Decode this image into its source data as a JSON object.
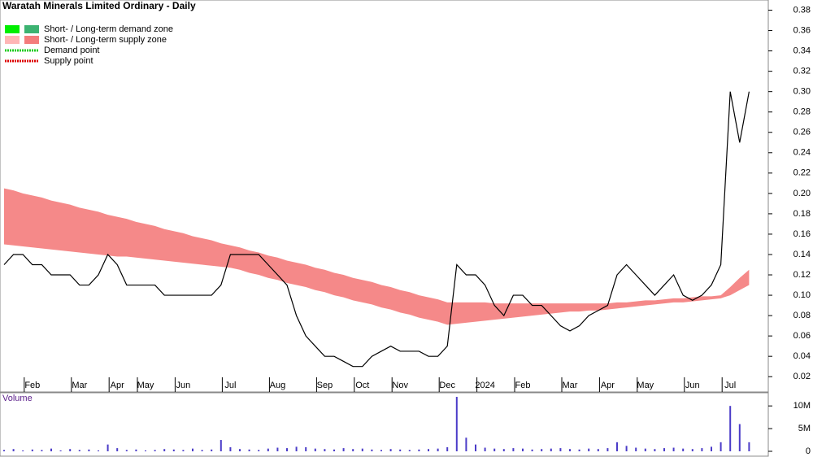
{
  "chart_data": {
    "type": "stock",
    "title": "Waratah Minerals Limited Ordinary - Daily",
    "legend": [
      "Short- / Long-term demand zone",
      "Short- / Long-term supply zone",
      "Demand point",
      "Supply point"
    ],
    "legend_colors": [
      [
        "#00ee00",
        "#3cb371"
      ],
      [
        "#ffb6b6",
        "#f47c7c"
      ],
      [
        "#22cc22"
      ],
      [
        "#dd0000"
      ]
    ],
    "categories": [
      null,
      null,
      null,
      "Feb",
      null,
      null,
      null,
      null,
      "Mar",
      null,
      null,
      null,
      "Apr",
      null,
      null,
      "May",
      null,
      null,
      null,
      "Jun",
      null,
      null,
      null,
      null,
      "Jul",
      null,
      null,
      null,
      null,
      "Aug",
      null,
      null,
      null,
      null,
      "Sep",
      null,
      null,
      null,
      "Oct",
      null,
      null,
      null,
      "Nov",
      null,
      null,
      null,
      null,
      "Dec",
      null,
      null,
      null,
      "2024",
      null,
      null,
      null,
      "Feb",
      null,
      null,
      null,
      null,
      "Mar",
      null,
      null,
      null,
      "Apr",
      null,
      null,
      null,
      "May",
      null,
      null,
      null,
      null,
      "Jun",
      null,
      null,
      null,
      "Jul",
      null,
      null
    ],
    "close": [
      0.13,
      0.14,
      0.14,
      0.13,
      0.13,
      0.12,
      0.12,
      0.12,
      0.11,
      0.11,
      0.12,
      0.14,
      0.13,
      0.11,
      0.11,
      0.11,
      0.11,
      0.1,
      0.1,
      0.1,
      0.1,
      0.1,
      0.1,
      0.11,
      0.14,
      0.14,
      0.14,
      0.14,
      0.13,
      0.12,
      0.11,
      0.08,
      0.06,
      0.05,
      0.04,
      0.04,
      0.035,
      0.03,
      0.03,
      0.04,
      0.045,
      0.05,
      0.045,
      0.045,
      0.045,
      0.04,
      0.04,
      0.05,
      0.13,
      0.12,
      0.12,
      0.11,
      0.09,
      0.08,
      0.1,
      0.1,
      0.09,
      0.09,
      0.08,
      0.07,
      0.065,
      0.07,
      0.08,
      0.085,
      0.09,
      0.12,
      0.13,
      0.12,
      0.11,
      0.1,
      0.11,
      0.12,
      0.1,
      0.095,
      0.1,
      0.11,
      0.13,
      0.3,
      0.25,
      0.3
    ],
    "close_color": "#000000",
    "zone_upper": [
      0.205,
      0.203,
      0.2,
      0.198,
      0.196,
      0.193,
      0.191,
      0.189,
      0.186,
      0.184,
      0.182,
      0.179,
      0.177,
      0.175,
      0.172,
      0.17,
      0.168,
      0.165,
      0.163,
      0.161,
      0.158,
      0.156,
      0.154,
      0.151,
      0.149,
      0.147,
      0.144,
      0.142,
      0.139,
      0.137,
      0.134,
      0.132,
      0.13,
      0.127,
      0.125,
      0.122,
      0.12,
      0.117,
      0.115,
      0.113,
      0.11,
      0.108,
      0.105,
      0.103,
      0.1,
      0.098,
      0.096,
      0.093,
      0.093,
      0.093,
      0.093,
      0.093,
      0.092,
      0.092,
      0.092,
      0.092,
      0.092,
      0.092,
      0.092,
      0.092,
      0.092,
      0.092,
      0.092,
      0.092,
      0.092,
      0.093,
      0.093,
      0.094,
      0.095,
      0.095,
      0.096,
      0.097,
      0.097,
      0.098,
      0.099,
      0.099,
      0.1,
      0.108,
      0.117,
      0.125
    ],
    "zone_lower": [
      0.15,
      0.149,
      0.148,
      0.147,
      0.146,
      0.145,
      0.144,
      0.143,
      0.142,
      0.141,
      0.14,
      0.139,
      0.138,
      0.138,
      0.137,
      0.136,
      0.135,
      0.134,
      0.133,
      0.132,
      0.131,
      0.13,
      0.129,
      0.128,
      0.127,
      0.125,
      0.122,
      0.12,
      0.117,
      0.115,
      0.112,
      0.11,
      0.108,
      0.105,
      0.103,
      0.1,
      0.098,
      0.095,
      0.093,
      0.091,
      0.088,
      0.086,
      0.083,
      0.081,
      0.078,
      0.076,
      0.074,
      0.071,
      0.072,
      0.073,
      0.074,
      0.075,
      0.076,
      0.077,
      0.078,
      0.079,
      0.08,
      0.081,
      0.082,
      0.083,
      0.084,
      0.084,
      0.085,
      0.085,
      0.086,
      0.087,
      0.088,
      0.089,
      0.09,
      0.091,
      0.092,
      0.093,
      0.093,
      0.094,
      0.095,
      0.096,
      0.097,
      0.1,
      0.105,
      0.11
    ],
    "zone_color": "#f47c7c",
    "ylim": [
      0.005,
      0.39
    ],
    "yticks": [
      0.02,
      0.04,
      0.06,
      0.08,
      {
        "value": 0.1,
        "label": "0.10"
      },
      0.12,
      0.14,
      0.16,
      0.18,
      {
        "value": 0.2,
        "label": "0.20"
      },
      0.22,
      0.24,
      0.26,
      0.28,
      {
        "value": 0.3,
        "label": "0.30"
      },
      0.32,
      0.34,
      0.36,
      0.38
    ],
    "volume_label": "Volume",
    "volume": [
      300000,
      500000,
      200000,
      400000,
      300000,
      600000,
      200000,
      500000,
      300000,
      400000,
      200000,
      1500000,
      700000,
      300000,
      400000,
      200000,
      300000,
      500000,
      400000,
      300000,
      600000,
      300000,
      400000,
      2500000,
      900000,
      500000,
      400000,
      300000,
      600000,
      800000,
      700000,
      1000000,
      900000,
      600000,
      500000,
      400000,
      700000,
      500000,
      600000,
      400000,
      300000,
      500000,
      400000,
      300000,
      400000,
      500000,
      600000,
      900000,
      12000000,
      3000000,
      1500000,
      800000,
      600000,
      500000,
      700000,
      600000,
      400000,
      500000,
      600000,
      700000,
      500000,
      400000,
      600000,
      500000,
      700000,
      2000000,
      1200000,
      800000,
      600000,
      500000,
      700000,
      800000,
      600000,
      500000,
      700000,
      1000000,
      2000000,
      10000000,
      6000000,
      2000000
    ],
    "volume_color": "#4b3cc8",
    "vlim": [
      0,
      12900000
    ],
    "vticks": [
      0,
      {
        "value": 5000000,
        "label": "5M"
      },
      {
        "value": 10000000,
        "label": "10M"
      }
    ]
  }
}
